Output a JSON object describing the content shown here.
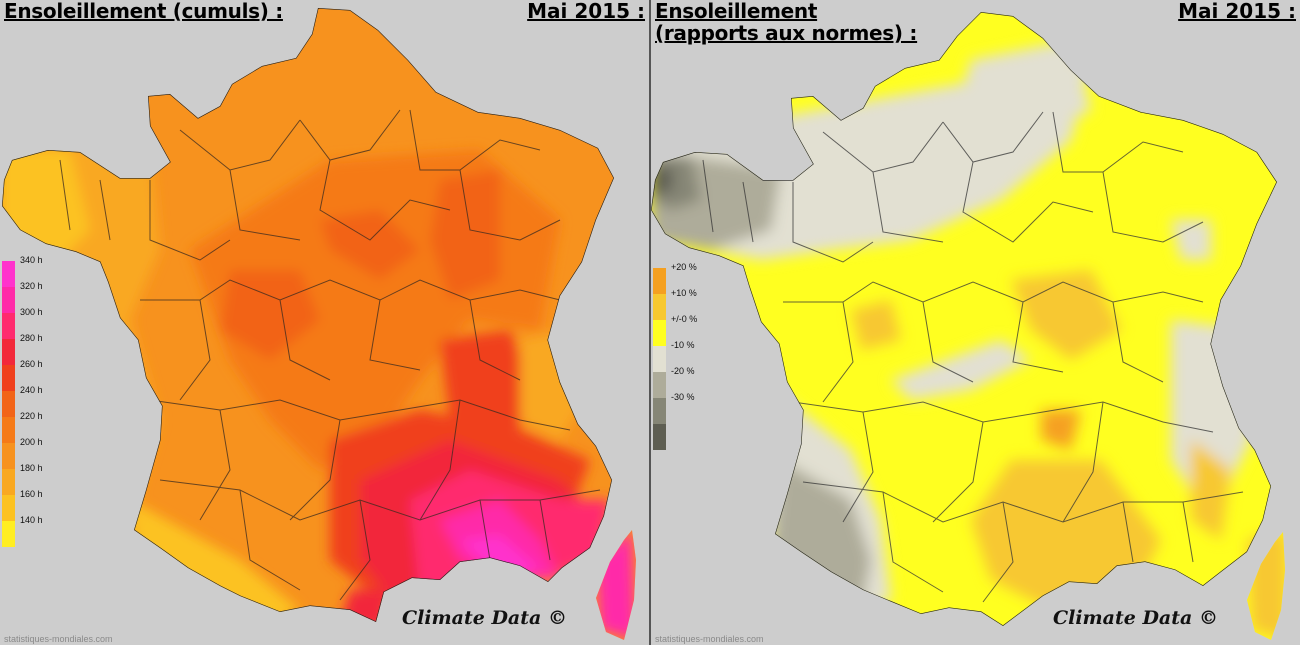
{
  "left_panel": {
    "title": "Ensoleillement (cumuls) :",
    "period": "Mai 2015 :",
    "legend": [
      {
        "label": "340 h",
        "color": "#ff33cc"
      },
      {
        "label": "320 h",
        "color": "#ff2aa8"
      },
      {
        "label": "300 h",
        "color": "#ff2a6e"
      },
      {
        "label": "280 h",
        "color": "#f2283a"
      },
      {
        "label": "260 h",
        "color": "#f0401c"
      },
      {
        "label": "240 h",
        "color": "#f26418"
      },
      {
        "label": "220 h",
        "color": "#f57a18"
      },
      {
        "label": "200 h",
        "color": "#f7921e"
      },
      {
        "label": "180 h",
        "color": "#f9a820"
      },
      {
        "label": "160 h",
        "color": "#fcc220"
      },
      {
        "label": "140 h",
        "color": "#ffee22"
      }
    ],
    "watermark": "Climate Data ©",
    "source": "statistiques-mondiales.com"
  },
  "right_panel": {
    "title_line1": "Ensoleillement",
    "title_line2": "(rapports aux normes) :",
    "period": "Mai 2015 :",
    "legend": [
      {
        "label": "+20 %",
        "color": "#f5a020"
      },
      {
        "label": "+10 %",
        "color": "#f7c830"
      },
      {
        "label": "+/-0 %",
        "color": "#ffff20"
      },
      {
        "label": "-10 %",
        "color": "#e2e0d2"
      },
      {
        "label": "-20 %",
        "color": "#aeac9a"
      },
      {
        "label": "-30 %",
        "color": "#868676"
      },
      {
        "label": "",
        "color": "#5e5e52"
      }
    ],
    "watermark": "Climate Data ©",
    "source": "statistiques-mondiales.com"
  }
}
